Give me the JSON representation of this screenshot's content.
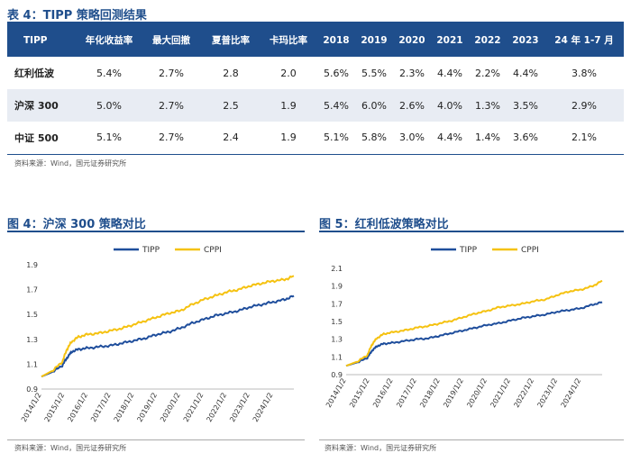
{
  "table": {
    "title": "表 4：TIPP 策略回测结果",
    "headers": [
      "TIPP",
      "年化收益率",
      "最大回撤",
      "夏普比率",
      "卡玛比率",
      "2018",
      "2019",
      "2020",
      "2021",
      "2022",
      "2023",
      "24 年 1-7 月"
    ],
    "rows": [
      [
        "红利低波",
        "5.4%",
        "2.7%",
        "2.8",
        "2.0",
        "5.6%",
        "5.5%",
        "2.3%",
        "4.4%",
        "2.2%",
        "4.4%",
        "3.8%"
      ],
      [
        "沪深 300",
        "5.0%",
        "2.7%",
        "2.5",
        "1.9",
        "5.4%",
        "6.0%",
        "2.6%",
        "4.0%",
        "1.3%",
        "3.5%",
        "2.9%"
      ],
      [
        "中证 500",
        "5.1%",
        "2.7%",
        "2.4",
        "1.9",
        "5.1%",
        "5.8%",
        "3.0%",
        "4.4%",
        "1.4%",
        "3.6%",
        "2.1%"
      ]
    ],
    "source": "资料来源：Wind，国元证券研究所"
  },
  "fig4": {
    "title": "图 4：沪深 300 策略对比",
    "source": "资料来源：Wind，国元证券研究所"
  },
  "fig5": {
    "title": "图 5：红利低波策略对比",
    "source": "资料来源：Wind，国元证券研究所"
  },
  "colors": {
    "tipp": "#1f4e9c",
    "cppi": "#f5c211",
    "header": "#1f4e8c"
  },
  "chart_data": [
    {
      "type": "line",
      "title": "",
      "xlabel": "",
      "ylabel": "",
      "ylim": [
        0.9,
        1.9
      ],
      "yticks": [
        "0.9",
        "1.1",
        "1.3",
        "1.5",
        "1.7",
        "1.9"
      ],
      "x": [
        2014.0,
        2014.5,
        2014.9,
        2015.1,
        2015.3,
        2015.6,
        2016.0,
        2016.5,
        2017.0,
        2017.5,
        2018.0,
        2018.5,
        2019.0,
        2019.5,
        2020.0,
        2020.5,
        2021.0,
        2021.5,
        2022.0,
        2022.5,
        2023.0,
        2023.5,
        2024.0,
        2024.5,
        2024.9
      ],
      "xticks": [
        "2014/1/2",
        "2015/1/2",
        "2016/1/2",
        "2017/1/2",
        "2018/1/2",
        "2019/1/2",
        "2020/1/2",
        "2021/1/2",
        "2022/1/2",
        "2023/1/2",
        "2024/1/2"
      ],
      "series": [
        {
          "name": "TIPP",
          "values": [
            1.0,
            1.04,
            1.09,
            1.15,
            1.2,
            1.22,
            1.23,
            1.24,
            1.25,
            1.27,
            1.29,
            1.31,
            1.34,
            1.36,
            1.39,
            1.43,
            1.46,
            1.49,
            1.51,
            1.53,
            1.56,
            1.58,
            1.6,
            1.62,
            1.65
          ]
        },
        {
          "name": "CPPI",
          "values": [
            1.0,
            1.05,
            1.12,
            1.22,
            1.28,
            1.32,
            1.34,
            1.35,
            1.37,
            1.39,
            1.42,
            1.45,
            1.48,
            1.51,
            1.53,
            1.58,
            1.62,
            1.65,
            1.68,
            1.7,
            1.73,
            1.75,
            1.77,
            1.78,
            1.81
          ]
        }
      ]
    },
    {
      "type": "line",
      "title": "",
      "xlabel": "",
      "ylabel": "",
      "ylim": [
        0.9,
        2.1
      ],
      "yticks": [
        "0.9",
        "1.1",
        "1.3",
        "1.5",
        "1.7",
        "1.9",
        "2.1"
      ],
      "x": [
        2014.0,
        2014.5,
        2014.9,
        2015.1,
        2015.3,
        2015.6,
        2016.0,
        2016.5,
        2017.0,
        2017.5,
        2018.0,
        2018.5,
        2019.0,
        2019.5,
        2020.0,
        2020.5,
        2021.0,
        2021.5,
        2022.0,
        2022.5,
        2023.0,
        2023.5,
        2024.0,
        2024.5,
        2024.9
      ],
      "xticks": [
        "2014/1/2",
        "2015/1/2",
        "2016/1/2",
        "2017/1/2",
        "2018/1/2",
        "2019/1/2",
        "2020/1/2",
        "2021/1/2",
        "2022/1/2",
        "2023/1/2",
        "2024/1/2"
      ],
      "series": [
        {
          "name": "TIPP",
          "values": [
            1.0,
            1.04,
            1.09,
            1.17,
            1.22,
            1.25,
            1.26,
            1.28,
            1.3,
            1.31,
            1.34,
            1.37,
            1.4,
            1.43,
            1.46,
            1.48,
            1.51,
            1.54,
            1.56,
            1.58,
            1.61,
            1.63,
            1.65,
            1.69,
            1.72
          ]
        },
        {
          "name": "CPPI",
          "values": [
            1.0,
            1.05,
            1.12,
            1.24,
            1.31,
            1.36,
            1.38,
            1.4,
            1.43,
            1.45,
            1.48,
            1.51,
            1.55,
            1.59,
            1.62,
            1.66,
            1.68,
            1.7,
            1.73,
            1.75,
            1.8,
            1.84,
            1.86,
            1.9,
            1.96
          ]
        }
      ]
    }
  ]
}
